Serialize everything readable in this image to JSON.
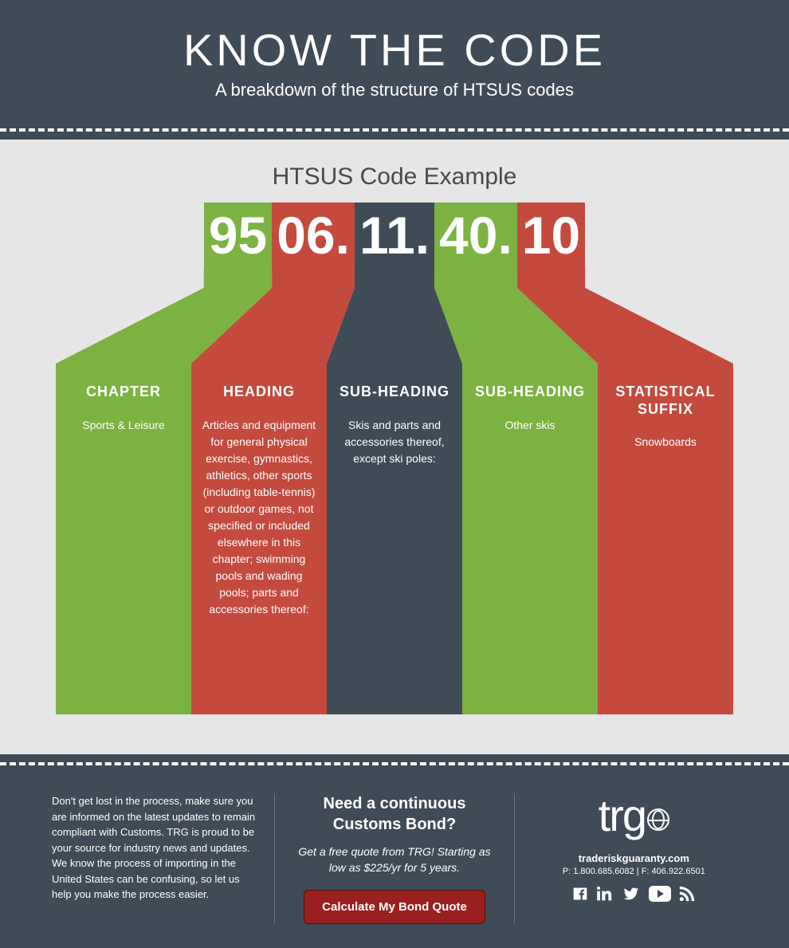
{
  "colors": {
    "dark_bg": "#3f4b57",
    "light_bg": "#e6e6e6",
    "white": "#ffffff",
    "green": "#7bb241",
    "red": "#c44a3d",
    "dark_slate": "#3f4b57",
    "btn_red": "#9a1f1f"
  },
  "header": {
    "title": "KNOW THE CODE",
    "subtitle": "A breakdown of the structure of HTSUS codes"
  },
  "example_label": "HTSUS Code Example",
  "code_segments": [
    {
      "text": "95",
      "bg": "#7bb241"
    },
    {
      "text": "06.",
      "bg": "#c44a3d"
    },
    {
      "text": "11.",
      "bg": "#3f4b57"
    },
    {
      "text": "40.",
      "bg": "#7bb241"
    },
    {
      "text": "10",
      "bg": "#c44a3d"
    }
  ],
  "columns": [
    {
      "title": "CHAPTER",
      "desc": "Sports & Leisure",
      "bg": "#7bb241"
    },
    {
      "title": "HEADING",
      "desc": "Articles and equipment for general physical exercise, gymnastics, athletics, other sports (including table-tennis) or outdoor games, not specified or included elsewhere in this chapter; swimming pools and wading pools; parts and accessories thereof:",
      "bg": "#c44a3d"
    },
    {
      "title": "SUB-HEADING",
      "desc": "Skis and parts and accessories thereof, except ski poles:",
      "bg": "#3f4b57"
    },
    {
      "title": "SUB-HEADING",
      "desc": "Other skis",
      "bg": "#7bb241"
    },
    {
      "title": "STATISTICAL SUFFIX",
      "desc": "Snowboards",
      "bg": "#c44a3d"
    }
  ],
  "footer": {
    "left_text": "Don't get lost in the process, make sure you are informed on the latest updates to remain compliant with Customs. TRG is proud to be your source for industry news and updates. We know the process of importing in the United States can be confusing, so let us help you make the process easier.",
    "mid_title": "Need a continuous Customs Bond?",
    "mid_sub": "Get a free quote from TRG! Starting as low as $225/yr for 5 years.",
    "cta": "Calculate My Bond Quote",
    "logo": "trg",
    "site": "traderiskguaranty.com",
    "contact": "P:  1.800.685.6082  | F: 406.922.6501"
  }
}
